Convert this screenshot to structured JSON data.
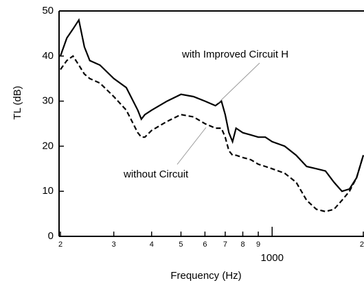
{
  "chart_data": {
    "type": "line",
    "xlabel": "Frequency (Hz)",
    "ylabel": "TL (dB)",
    "xscale": "log",
    "x": [
      200,
      210,
      220,
      230,
      240,
      250,
      270,
      300,
      330,
      360,
      370,
      380,
      400,
      450,
      500,
      550,
      600,
      650,
      680,
      700,
      720,
      740,
      760,
      800,
      850,
      900,
      950,
      1000,
      1100,
      1200,
      1300,
      1400,
      1500,
      1600,
      1700,
      1800,
      1900,
      2000
    ],
    "series": [
      {
        "name": "with Improved Circuit H",
        "color": "#000000",
        "linestyle": "solid",
        "values": [
          40,
          44,
          46,
          48,
          42,
          39,
          38,
          35,
          33,
          28,
          26,
          27,
          28,
          30,
          31.5,
          31,
          30,
          29,
          30,
          27,
          23,
          21,
          24,
          23,
          22.5,
          22,
          22,
          21,
          20,
          18,
          15.5,
          15,
          14.5,
          12,
          10,
          10.5,
          13,
          18
        ]
      },
      {
        "name": "without Circuit",
        "color": "#000000",
        "linestyle": "dashed",
        "values": [
          37,
          39,
          40,
          38,
          36,
          35,
          34,
          31,
          28,
          23,
          22,
          22,
          23.5,
          25.5,
          27,
          26.5,
          25,
          24,
          24,
          22,
          19,
          18,
          18,
          17.5,
          17,
          16,
          15.5,
          15,
          14,
          12,
          8,
          6,
          5.5,
          6,
          8,
          10,
          13,
          18
        ]
      }
    ],
    "xlim": [
      200,
      2000
    ],
    "xticks": [
      {
        "value": 200,
        "label": "2"
      },
      {
        "value": 300,
        "label": "3"
      },
      {
        "value": 400,
        "label": "4"
      },
      {
        "value": 500,
        "label": "5"
      },
      {
        "value": 600,
        "label": "6"
      },
      {
        "value": 700,
        "label": "7"
      },
      {
        "value": 800,
        "label": "8"
      },
      {
        "value": 900,
        "label": "9"
      },
      1000,
      {
        "value": 2000,
        "label": "2"
      }
    ],
    "ylim": [
      0,
      50
    ],
    "yticks": [
      0,
      10,
      20,
      30,
      40,
      50
    ],
    "grid": false
  }
}
